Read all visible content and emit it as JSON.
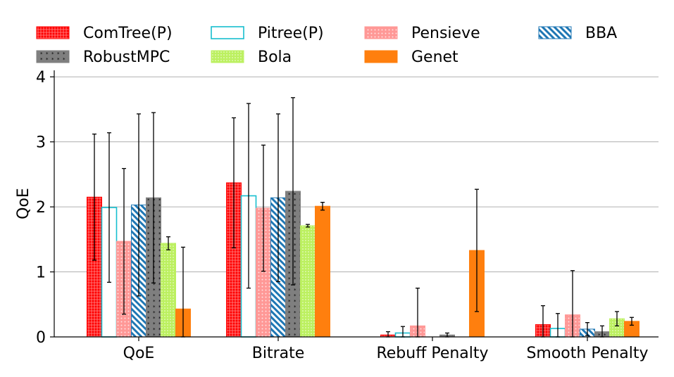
{
  "chart_data": {
    "type": "bar",
    "categories": [
      "QoE",
      "Bitrate",
      "Rebuff Penalty",
      "Smooth Penalty"
    ],
    "ylabel": "QoE",
    "xlabel": "",
    "ylim": [
      0,
      4.1
    ],
    "yticks": [
      0,
      1,
      2,
      3,
      4
    ],
    "grid": "horizontal",
    "legend_position": "top",
    "series": [
      {
        "name": "ComTree(P)",
        "color": "#ff0000",
        "fill": "dense-grid",
        "values": [
          2.15,
          2.37,
          0.03,
          0.19
        ],
        "errors": [
          0.97,
          1.0,
          0.05,
          0.29
        ]
      },
      {
        "name": "Pitree(P)",
        "color": "#17becf",
        "fill": "hollow",
        "values": [
          1.99,
          2.17,
          0.06,
          0.13
        ],
        "errors": [
          1.15,
          1.42,
          0.1,
          0.23
        ]
      },
      {
        "name": "Pensieve",
        "color": "#ff9896",
        "fill": "dots",
        "values": [
          1.47,
          1.98,
          0.17,
          0.34
        ],
        "errors": [
          1.12,
          0.97,
          0.58,
          0.68
        ]
      },
      {
        "name": "BBA",
        "color": "#1f77b4",
        "fill": "hatch",
        "values": [
          2.03,
          2.14,
          0.0,
          0.12
        ],
        "errors": [
          1.4,
          1.29,
          0.0,
          0.1
        ]
      },
      {
        "name": "RobustMPC",
        "color": "#7f7f7f",
        "fill": "stars",
        "values": [
          2.14,
          2.24,
          0.03,
          0.08
        ],
        "errors": [
          1.31,
          1.44,
          0.03,
          0.09
        ]
      },
      {
        "name": "Bola",
        "color": "#bcf060",
        "fill": "small-dots",
        "values": [
          1.44,
          1.71,
          0.0,
          0.28
        ],
        "errors": [
          0.1,
          0.02,
          0.0,
          0.11
        ]
      },
      {
        "name": "Genet",
        "color": "#ff7f0e",
        "fill": "solid",
        "values": [
          0.43,
          2.01,
          1.33,
          0.24
        ],
        "errors": [
          0.95,
          0.06,
          0.94,
          0.06
        ]
      }
    ]
  }
}
